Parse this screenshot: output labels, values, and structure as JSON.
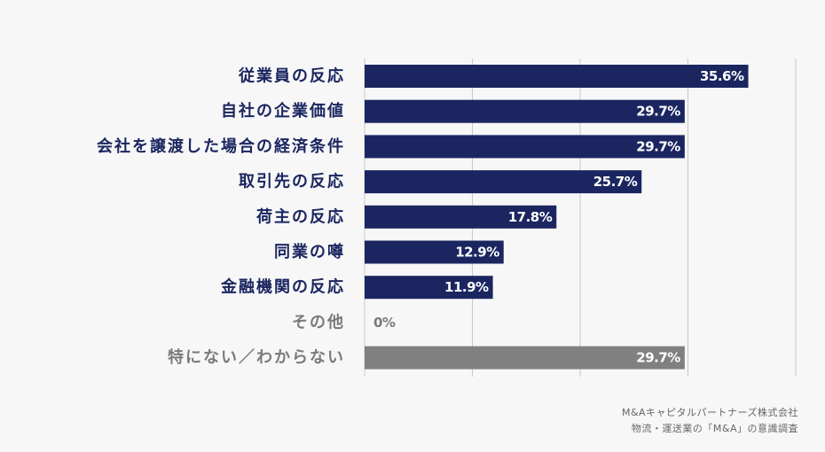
{
  "chart_data": {
    "type": "bar",
    "orientation": "horizontal",
    "categories": [
      "従業員の反応",
      "自社の企業価値",
      "会社を譲渡した場合の経済条件",
      "取引先の反応",
      "荷主の反応",
      "同業の噂",
      "金融機関の反応",
      "その他",
      "特にない／わからない"
    ],
    "values": [
      35.6,
      29.7,
      29.7,
      25.7,
      17.8,
      12.9,
      11.9,
      0,
      29.7
    ],
    "value_labels": [
      "35.6%",
      "29.7%",
      "29.7%",
      "25.7%",
      "17.8%",
      "12.9%",
      "11.9%",
      "0%",
      "29.7%"
    ],
    "xlim": [
      0,
      40
    ],
    "grid": true,
    "colors": {
      "primary_bar": "#1b2660",
      "muted_bar": "#808080",
      "primary_label": "#1b2660",
      "muted_label": "#7a7a7a",
      "grid": "#c8c8c8"
    },
    "muted_categories": [
      "その他",
      "特にない／わからない"
    ]
  },
  "source": {
    "line1": "M&Aキャピタルパートナーズ株式会社",
    "line2": "物流・運送業の「M&A」の意識調査"
  }
}
